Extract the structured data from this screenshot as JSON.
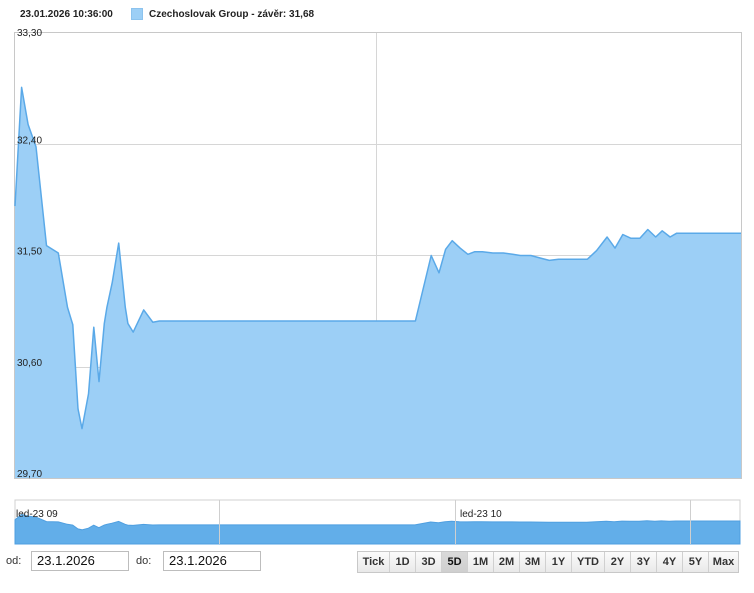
{
  "header": {
    "timestamp": "23.01.2026 10:36:00",
    "legend_label": "Czechoslovak Group - závěr: 31,68"
  },
  "colors": {
    "area_fill": "#9ccff6",
    "line": "#5aa9e8",
    "grid": "#d6d6d6"
  },
  "chart_data": {
    "type": "area",
    "title": "",
    "xlabel": "",
    "ylabel": "",
    "ylim": [
      29.7,
      33.3
    ],
    "yticks": [
      "29,70",
      "30,60",
      "31,50",
      "32,40",
      "33,30"
    ],
    "ytick_values": [
      29.7,
      30.6,
      31.5,
      32.4,
      33.3
    ],
    "vertical_grid": true,
    "legend_position": "top-left",
    "series": [
      {
        "name": "Czechoslovak Group - závěr: 31,68",
        "x": [
          0,
          0.5,
          1,
          1.6,
          2.4,
          3.3,
          4,
          4.4,
          4.8,
          5.1,
          5.6,
          6.0,
          6.4,
          6.8,
          7.0,
          7.4,
          7.9,
          8.4,
          8.6,
          9.0,
          9.8,
          10.5,
          11,
          11.6,
          12,
          12.7,
          13.2,
          13.6,
          14,
          14.4,
          15,
          16,
          20,
          25,
          30.5,
          31.7,
          32.3,
          32.8,
          33.3,
          33.9,
          34.5,
          35.0,
          35.6,
          36.4,
          37.2,
          37.9,
          38.5,
          39.3,
          40,
          40.7,
          41.4,
          42.1,
          42.7,
          43.6,
          44.3,
          45.1,
          45.7,
          46.3,
          46.9,
          47.6,
          48.2,
          48.8,
          49.3,
          49.9,
          50.4,
          51.0,
          51.4,
          51.8,
          52.4,
          52.9,
          53.5,
          54.2,
          54.8,
          55.3
        ],
        "values": [
          31.9,
          32.86,
          32.56,
          32.38,
          31.58,
          31.52,
          31.08,
          30.94,
          30.26,
          30.1,
          30.38,
          30.92,
          30.48,
          30.95,
          31.08,
          31.28,
          31.6,
          31.08,
          30.95,
          30.88,
          31.06,
          30.96,
          30.97,
          30.97,
          30.97,
          30.97,
          30.97,
          30.97,
          30.97,
          30.97,
          30.97,
          30.97,
          30.97,
          30.97,
          30.97,
          31.5,
          31.36,
          31.55,
          31.62,
          31.56,
          31.51,
          31.53,
          31.53,
          31.52,
          31.52,
          31.51,
          31.5,
          31.5,
          31.48,
          31.46,
          31.47,
          31.47,
          31.47,
          31.47,
          31.54,
          31.65,
          31.56,
          31.67,
          31.64,
          31.64,
          31.71,
          31.65,
          31.7,
          31.65,
          31.68,
          31.68,
          31.68,
          31.68,
          31.68,
          31.68,
          31.68,
          31.68,
          31.68,
          31.68
        ]
      }
    ],
    "xlim": [
      0,
      55.3
    ],
    "session_break_x": 27.5
  },
  "navigator": {
    "labels": [
      "led-23 09",
      "led-23 10"
    ]
  },
  "controls": {
    "from_label": "od:",
    "from_value": "23.1.2026",
    "to_label": "do:",
    "to_value": "23.1.2026",
    "ranges": [
      "Tick",
      "1D",
      "3D",
      "5D",
      "1M",
      "2M",
      "3M",
      "1Y",
      "YTD",
      "2Y",
      "3Y",
      "4Y",
      "5Y",
      "Max"
    ],
    "active_range": "5D"
  }
}
